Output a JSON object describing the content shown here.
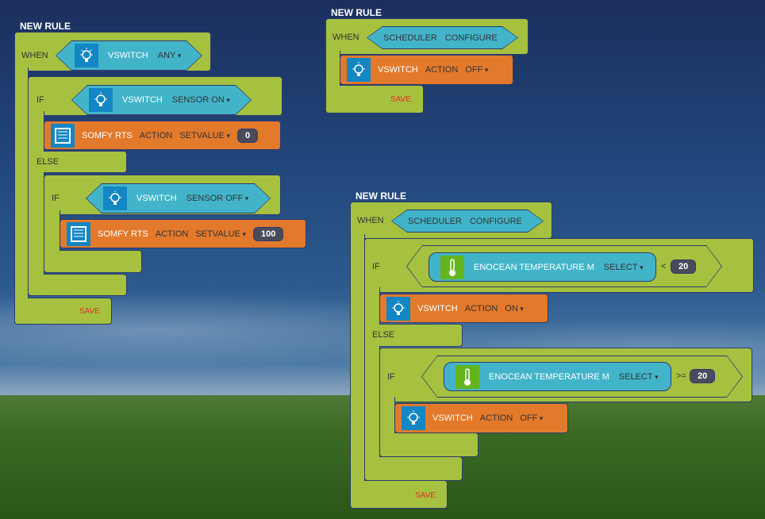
{
  "rules": [
    {
      "title": "NEW RULE",
      "when": "WHEN",
      "trigger": {
        "device": "VSWITCH",
        "event": "ANY"
      },
      "if": "IF",
      "cond": {
        "device": "VSWITCH",
        "state": "SENSOR ON"
      },
      "then": {
        "device": "SOMFY RTS",
        "action": "ACTION",
        "command": "SETVALUE",
        "value": "0"
      },
      "else": "ELSE",
      "if2": "IF",
      "cond2": {
        "device": "VSWITCH",
        "state": "SENSOR OFF"
      },
      "then2": {
        "device": "SOMFY RTS",
        "action": "ACTION",
        "command": "SETVALUE",
        "value": "100"
      },
      "save": "SAVE"
    },
    {
      "title": "NEW RULE",
      "when": "WHEN",
      "trigger": {
        "device": "SCHEDULER",
        "event": "CONFIGURE"
      },
      "then": {
        "device": "VSWITCH",
        "action": "ACTION",
        "command": "OFF"
      },
      "save": "SAVE"
    },
    {
      "title": "NEW RULE",
      "when": "WHEN",
      "trigger": {
        "device": "SCHEDULER",
        "event": "CONFIGURE"
      },
      "if": "IF",
      "cond": {
        "device": "ENOCEAN TEMPERATURE M",
        "field": "SELECT",
        "op": "<",
        "value": "20"
      },
      "then": {
        "device": "VSWITCH",
        "action": "ACTION",
        "command": "ON"
      },
      "else": "ELSE",
      "if2": "IF",
      "cond2": {
        "device": "ENOCEAN TEMPERATURE M",
        "field": "SELECT",
        "op": ">=",
        "value": "20"
      },
      "then2": {
        "device": "VSWITCH",
        "action": "ACTION",
        "command": "OFF"
      },
      "save": "SAVE"
    }
  ],
  "icons": {
    "bulb": "lightbulb-icon",
    "shutter": "blind-icon",
    "thermo": "thermometer-icon"
  }
}
